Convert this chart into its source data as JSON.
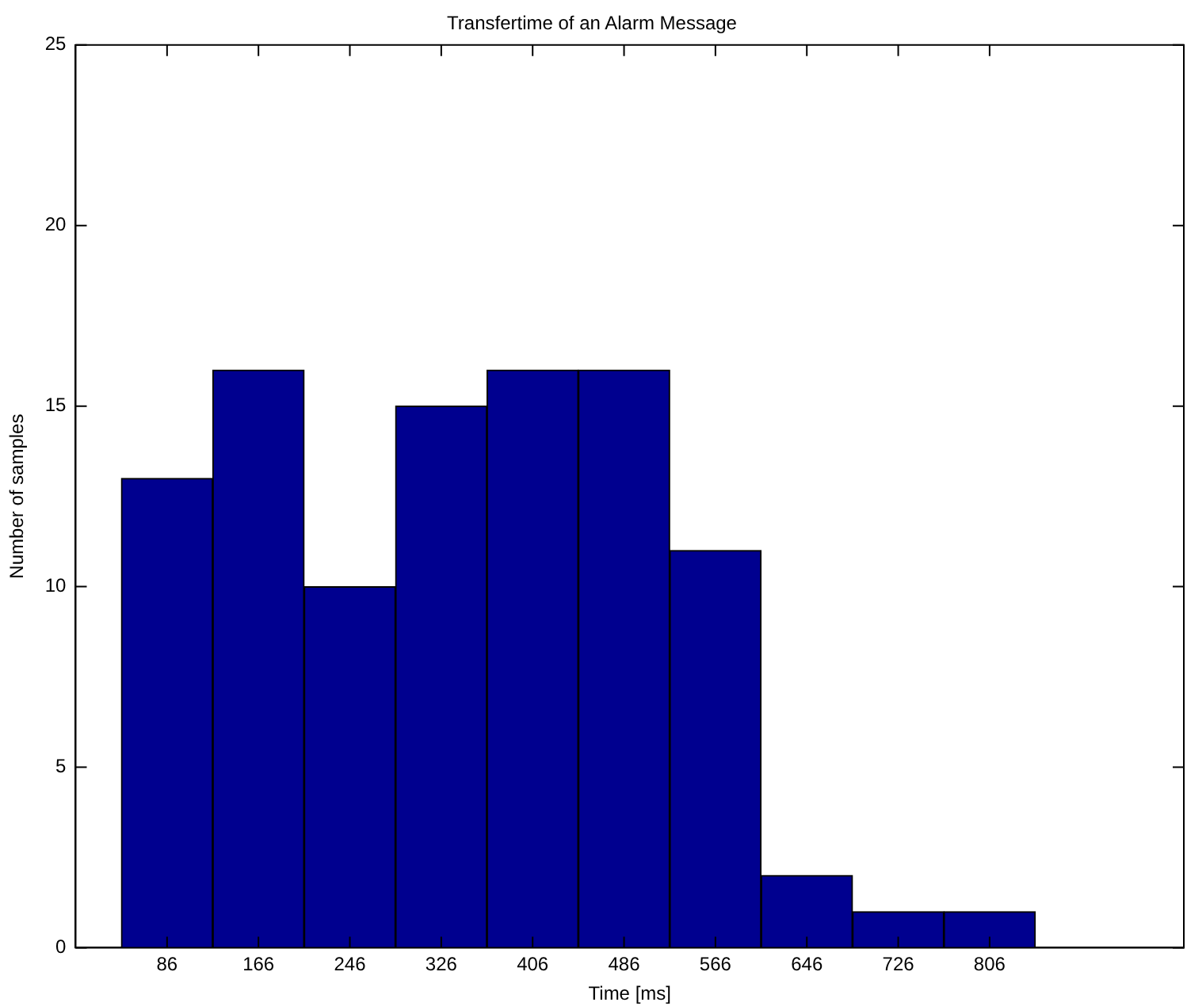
{
  "chart_data": {
    "type": "histogram",
    "title": "Transfertime of an Alarm Message",
    "xlabel": "Time [ms]",
    "ylabel": "Number of samples",
    "bins": [
      46,
      126,
      206,
      286,
      366,
      446,
      526,
      606,
      686,
      766,
      846
    ],
    "values": [
      13,
      16,
      10,
      15,
      16,
      16,
      11,
      2,
      1,
      1
    ],
    "color": "#00008f",
    "xlim": [
      6,
      976
    ],
    "xticks": [
      86,
      166,
      246,
      326,
      406,
      486,
      566,
      646,
      726,
      806
    ],
    "ylim": [
      0,
      25
    ],
    "yticks": [
      0,
      5,
      10,
      15,
      20,
      25
    ],
    "grid": false,
    "legend": false
  }
}
